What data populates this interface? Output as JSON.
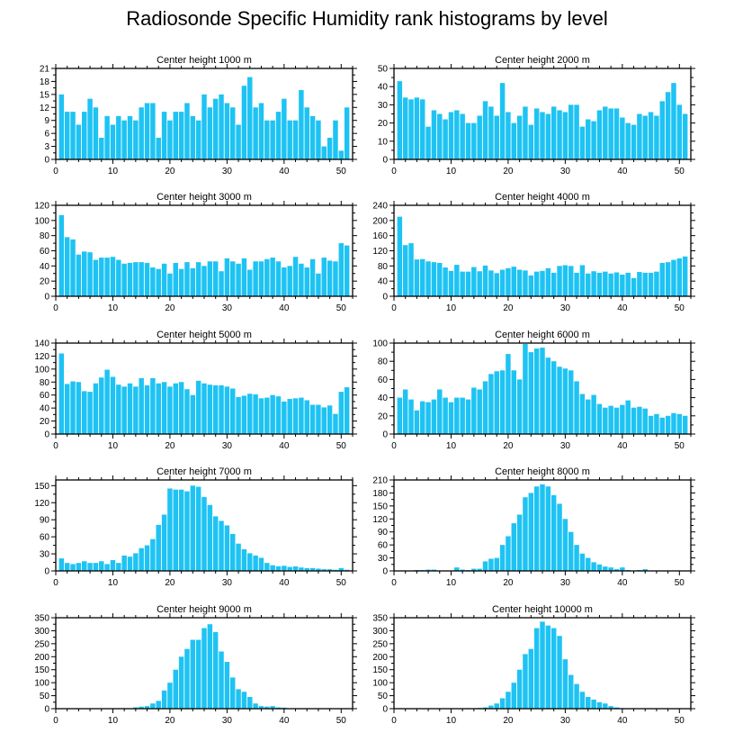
{
  "title": "Radiosonde Specific Humidity rank histograms by level",
  "bar_color": "#1ec3f3",
  "axis_color": "#000000",
  "chart_data": [
    {
      "type": "bar",
      "title": "Center height 1000 m",
      "x_start": 1,
      "ylim": [
        0,
        21
      ],
      "yticks": [
        0,
        3,
        6,
        9,
        12,
        15,
        18,
        21
      ],
      "xticks": [
        0,
        10,
        20,
        30,
        40,
        50
      ],
      "values": [
        15,
        11,
        11,
        8,
        11,
        14,
        12,
        5,
        10,
        8,
        10,
        9,
        10,
        9,
        12,
        13,
        13,
        5,
        11,
        9,
        11,
        11,
        13,
        10,
        9,
        15,
        12,
        14,
        15,
        13,
        12,
        8,
        17,
        19,
        12,
        13,
        9,
        9,
        11,
        14,
        9,
        9,
        16,
        12,
        10,
        9,
        3,
        5,
        9,
        2,
        12
      ]
    },
    {
      "type": "bar",
      "title": "Center height 2000 m",
      "x_start": 1,
      "ylim": [
        0,
        50
      ],
      "yticks": [
        0,
        10,
        20,
        30,
        40,
        50
      ],
      "xticks": [
        0,
        10,
        20,
        30,
        40,
        50
      ],
      "values": [
        43,
        34,
        33,
        34,
        33,
        18,
        27,
        25,
        22,
        26,
        27,
        25,
        20,
        20,
        24,
        32,
        29,
        24,
        42,
        26,
        20,
        24,
        29,
        19,
        28,
        26,
        25,
        29,
        27,
        26,
        30,
        30,
        18,
        22,
        21,
        27,
        29,
        28,
        28,
        23,
        20,
        19,
        25,
        24,
        26,
        24,
        32,
        37,
        42,
        30,
        25
      ]
    },
    {
      "type": "bar",
      "title": "Center height 3000 m",
      "x_start": 1,
      "ylim": [
        0,
        120
      ],
      "yticks": [
        0,
        20,
        40,
        60,
        80,
        100,
        120
      ],
      "xticks": [
        0,
        10,
        20,
        30,
        40,
        50
      ],
      "values": [
        107,
        78,
        75,
        55,
        59,
        58,
        48,
        51,
        51,
        52,
        48,
        43,
        44,
        45,
        45,
        44,
        38,
        36,
        43,
        30,
        44,
        36,
        45,
        37,
        45,
        40,
        46,
        46,
        33,
        50,
        46,
        43,
        50,
        35,
        46,
        46,
        49,
        51,
        46,
        38,
        40,
        52,
        43,
        38,
        49,
        30,
        51,
        47,
        46,
        70,
        67
      ]
    },
    {
      "type": "bar",
      "title": "Center height 4000 m",
      "x_start": 1,
      "ylim": [
        0,
        240
      ],
      "yticks": [
        0,
        40,
        80,
        120,
        160,
        200,
        240
      ],
      "xticks": [
        0,
        10,
        20,
        30,
        40,
        50
      ],
      "values": [
        210,
        135,
        140,
        97,
        98,
        92,
        90,
        88,
        76,
        67,
        83,
        65,
        65,
        77,
        66,
        81,
        68,
        61,
        70,
        74,
        78,
        70,
        68,
        55,
        65,
        67,
        74,
        62,
        80,
        82,
        80,
        62,
        82,
        60,
        66,
        62,
        65,
        60,
        63,
        57,
        62,
        48,
        64,
        62,
        62,
        65,
        88,
        90,
        96,
        100,
        105
      ]
    },
    {
      "type": "bar",
      "title": "Center height 5000 m",
      "x_start": 1,
      "ylim": [
        0,
        140
      ],
      "yticks": [
        0,
        20,
        40,
        60,
        80,
        100,
        120,
        140
      ],
      "xticks": [
        0,
        10,
        20,
        30,
        40,
        50
      ],
      "values": [
        124,
        77,
        81,
        80,
        66,
        65,
        78,
        87,
        99,
        88,
        76,
        73,
        78,
        73,
        86,
        75,
        86,
        78,
        80,
        73,
        78,
        80,
        69,
        60,
        82,
        78,
        76,
        75,
        75,
        73,
        70,
        57,
        59,
        62,
        61,
        55,
        56,
        60,
        58,
        50,
        54,
        55,
        56,
        52,
        45,
        45,
        41,
        44,
        31,
        65,
        72
      ]
    },
    {
      "type": "bar",
      "title": "Center height 6000 m",
      "x_start": 1,
      "ylim": [
        0,
        100
      ],
      "yticks": [
        0,
        20,
        40,
        60,
        80,
        100
      ],
      "xticks": [
        0,
        10,
        20,
        30,
        40,
        50
      ],
      "values": [
        40,
        49,
        38,
        26,
        36,
        35,
        38,
        49,
        40,
        35,
        40,
        40,
        38,
        51,
        49,
        58,
        66,
        69,
        70,
        88,
        70,
        60,
        99,
        90,
        94,
        95,
        84,
        80,
        74,
        72,
        70,
        58,
        44,
        38,
        43,
        33,
        29,
        31,
        29,
        32,
        37,
        29,
        30,
        28,
        20,
        22,
        18,
        20,
        23,
        22,
        20
      ]
    },
    {
      "type": "bar",
      "title": "Center height 7000 m",
      "x_start": 1,
      "ylim": [
        0,
        160
      ],
      "yticks": [
        0,
        30,
        60,
        90,
        120,
        150
      ],
      "xticks": [
        0,
        10,
        20,
        30,
        40,
        50
      ],
      "values": [
        22,
        14,
        12,
        14,
        17,
        14,
        14,
        17,
        12,
        19,
        14,
        27,
        25,
        31,
        40,
        45,
        56,
        81,
        99,
        145,
        143,
        143,
        140,
        150,
        148,
        130,
        116,
        96,
        88,
        80,
        65,
        48,
        38,
        31,
        27,
        23,
        14,
        10,
        8,
        9,
        7,
        8,
        6,
        5,
        5,
        4,
        3,
        3,
        2,
        5,
        2
      ]
    },
    {
      "type": "bar",
      "title": "Center height 8000 m",
      "x_start": 1,
      "ylim": [
        0,
        210
      ],
      "yticks": [
        0,
        30,
        60,
        90,
        120,
        150,
        180,
        210
      ],
      "xticks": [
        0,
        10,
        20,
        30,
        40,
        50
      ],
      "values": [
        0,
        0,
        1,
        2,
        2,
        3,
        3,
        1,
        1,
        0,
        8,
        3,
        2,
        5,
        5,
        22,
        28,
        30,
        60,
        80,
        110,
        130,
        170,
        180,
        195,
        200,
        195,
        175,
        155,
        120,
        90,
        60,
        40,
        30,
        20,
        15,
        10,
        8,
        4,
        8,
        2,
        0,
        2,
        4,
        1,
        0,
        0,
        0,
        0,
        0,
        0
      ]
    },
    {
      "type": "bar",
      "title": "Center height 9000 m",
      "x_start": 1,
      "ylim": [
        0,
        350
      ],
      "yticks": [
        0,
        50,
        100,
        150,
        200,
        250,
        300,
        350
      ],
      "xticks": [
        0,
        10,
        20,
        30,
        40,
        50
      ],
      "values": [
        0,
        0,
        0,
        0,
        0,
        0,
        0,
        0,
        0,
        0,
        0,
        2,
        1,
        5,
        8,
        10,
        20,
        30,
        70,
        100,
        150,
        200,
        230,
        265,
        265,
        310,
        325,
        295,
        220,
        180,
        120,
        75,
        65,
        45,
        20,
        10,
        8,
        10,
        5,
        4,
        0,
        0,
        0,
        0,
        0,
        0,
        0,
        0,
        0,
        0,
        0
      ]
    },
    {
      "type": "bar",
      "title": "Center height 10000 m",
      "x_start": 1,
      "ylim": [
        0,
        350
      ],
      "yticks": [
        0,
        50,
        100,
        150,
        200,
        250,
        300,
        350
      ],
      "xticks": [
        0,
        10,
        20,
        30,
        40,
        50
      ],
      "values": [
        0,
        0,
        0,
        0,
        0,
        0,
        0,
        0,
        0,
        0,
        0,
        0,
        2,
        1,
        3,
        5,
        12,
        20,
        40,
        65,
        100,
        150,
        210,
        230,
        310,
        335,
        320,
        310,
        280,
        190,
        130,
        95,
        65,
        45,
        35,
        25,
        20,
        10,
        5,
        2,
        0,
        0,
        0,
        0,
        0,
        0,
        0,
        0,
        0,
        0,
        0
      ]
    }
  ]
}
